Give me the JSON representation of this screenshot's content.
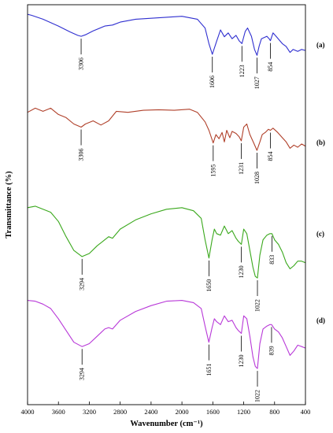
{
  "chart_data": {
    "type": "line",
    "xlabel": "Wavenumber (cm⁻¹)",
    "ylabel": "Transmittance (%)",
    "xlim": [
      4000,
      400
    ],
    "x_reversed": true,
    "xticks": [
      4000,
      3600,
      3200,
      2800,
      2400,
      2000,
      1600,
      1200,
      800,
      400
    ],
    "grid": false,
    "legend": "none",
    "series": [
      {
        "name": "(a)",
        "color": "#2f2fd0",
        "points": [
          [
            4000,
            0.9
          ],
          [
            3950,
            0.88
          ],
          [
            3800,
            0.8
          ],
          [
            3600,
            0.66
          ],
          [
            3450,
            0.54
          ],
          [
            3350,
            0.47
          ],
          [
            3306,
            0.45
          ],
          [
            3250,
            0.48
          ],
          [
            3150,
            0.56
          ],
          [
            3000,
            0.66
          ],
          [
            2900,
            0.68
          ],
          [
            2800,
            0.74
          ],
          [
            2600,
            0.8
          ],
          [
            2400,
            0.82
          ],
          [
            2200,
            0.84
          ],
          [
            2000,
            0.86
          ],
          [
            1800,
            0.8
          ],
          [
            1700,
            0.62
          ],
          [
            1650,
            0.3
          ],
          [
            1606,
            0.08
          ],
          [
            1550,
            0.35
          ],
          [
            1500,
            0.58
          ],
          [
            1450,
            0.44
          ],
          [
            1400,
            0.52
          ],
          [
            1350,
            0.4
          ],
          [
            1300,
            0.47
          ],
          [
            1260,
            0.36
          ],
          [
            1223,
            0.3
          ],
          [
            1180,
            0.55
          ],
          [
            1150,
            0.62
          ],
          [
            1100,
            0.45
          ],
          [
            1060,
            0.18
          ],
          [
            1027,
            0.06
          ],
          [
            1000,
            0.25
          ],
          [
            970,
            0.4
          ],
          [
            900,
            0.45
          ],
          [
            870,
            0.4
          ],
          [
            854,
            0.36
          ],
          [
            820,
            0.52
          ],
          [
            780,
            0.45
          ],
          [
            700,
            0.3
          ],
          [
            650,
            0.24
          ],
          [
            600,
            0.12
          ],
          [
            560,
            0.18
          ],
          [
            500,
            0.14
          ],
          [
            450,
            0.18
          ],
          [
            400,
            0.16
          ]
        ],
        "peaks": [
          3306,
          1606,
          1223,
          1027,
          854
        ]
      },
      {
        "name": "(b)",
        "color": "#b0402a",
        "points": [
          [
            4000,
            0.78
          ],
          [
            3900,
            0.86
          ],
          [
            3800,
            0.8
          ],
          [
            3700,
            0.86
          ],
          [
            3600,
            0.74
          ],
          [
            3500,
            0.68
          ],
          [
            3400,
            0.56
          ],
          [
            3306,
            0.5
          ],
          [
            3250,
            0.56
          ],
          [
            3150,
            0.62
          ],
          [
            3050,
            0.54
          ],
          [
            2950,
            0.62
          ],
          [
            2850,
            0.8
          ],
          [
            2700,
            0.78
          ],
          [
            2500,
            0.82
          ],
          [
            2300,
            0.83
          ],
          [
            2100,
            0.82
          ],
          [
            1900,
            0.84
          ],
          [
            1800,
            0.78
          ],
          [
            1700,
            0.6
          ],
          [
            1650,
            0.44
          ],
          [
            1595,
            0.2
          ],
          [
            1560,
            0.36
          ],
          [
            1520,
            0.28
          ],
          [
            1480,
            0.4
          ],
          [
            1450,
            0.22
          ],
          [
            1420,
            0.44
          ],
          [
            1380,
            0.3
          ],
          [
            1350,
            0.42
          ],
          [
            1300,
            0.38
          ],
          [
            1260,
            0.32
          ],
          [
            1231,
            0.24
          ],
          [
            1200,
            0.5
          ],
          [
            1160,
            0.56
          ],
          [
            1120,
            0.36
          ],
          [
            1070,
            0.2
          ],
          [
            1028,
            0.06
          ],
          [
            990,
            0.22
          ],
          [
            960,
            0.36
          ],
          [
            920,
            0.4
          ],
          [
            880,
            0.46
          ],
          [
            854,
            0.44
          ],
          [
            820,
            0.48
          ],
          [
            760,
            0.4
          ],
          [
            700,
            0.3
          ],
          [
            650,
            0.22
          ],
          [
            600,
            0.1
          ],
          [
            550,
            0.16
          ],
          [
            500,
            0.12
          ],
          [
            450,
            0.18
          ],
          [
            400,
            0.14
          ]
        ],
        "peaks": [
          3306,
          1595,
          1231,
          1028,
          854
        ]
      },
      {
        "name": "(c)",
        "color": "#3aa81c",
        "points": [
          [
            4000,
            0.94
          ],
          [
            3900,
            0.96
          ],
          [
            3800,
            0.92
          ],
          [
            3700,
            0.88
          ],
          [
            3600,
            0.76
          ],
          [
            3500,
            0.56
          ],
          [
            3400,
            0.38
          ],
          [
            3294,
            0.3
          ],
          [
            3200,
            0.34
          ],
          [
            3100,
            0.44
          ],
          [
            3000,
            0.52
          ],
          [
            2950,
            0.56
          ],
          [
            2900,
            0.54
          ],
          [
            2800,
            0.66
          ],
          [
            2600,
            0.78
          ],
          [
            2400,
            0.86
          ],
          [
            2200,
            0.92
          ],
          [
            2000,
            0.94
          ],
          [
            1850,
            0.9
          ],
          [
            1750,
            0.8
          ],
          [
            1700,
            0.52
          ],
          [
            1650,
            0.28
          ],
          [
            1610,
            0.52
          ],
          [
            1580,
            0.66
          ],
          [
            1550,
            0.6
          ],
          [
            1500,
            0.58
          ],
          [
            1450,
            0.7
          ],
          [
            1400,
            0.6
          ],
          [
            1350,
            0.64
          ],
          [
            1300,
            0.54
          ],
          [
            1270,
            0.5
          ],
          [
            1230,
            0.46
          ],
          [
            1200,
            0.66
          ],
          [
            1160,
            0.6
          ],
          [
            1120,
            0.38
          ],
          [
            1080,
            0.16
          ],
          [
            1050,
            0.04
          ],
          [
            1022,
            0.02
          ],
          [
            990,
            0.32
          ],
          [
            950,
            0.52
          ],
          [
            900,
            0.58
          ],
          [
            860,
            0.6
          ],
          [
            833,
            0.6
          ],
          [
            800,
            0.52
          ],
          [
            750,
            0.46
          ],
          [
            700,
            0.36
          ],
          [
            650,
            0.22
          ],
          [
            600,
            0.14
          ],
          [
            550,
            0.18
          ],
          [
            500,
            0.24
          ],
          [
            450,
            0.24
          ],
          [
            400,
            0.22
          ]
        ],
        "peaks": [
          3294,
          1650,
          1230,
          1022,
          833
        ]
      },
      {
        "name": "(d)",
        "color": "#b838d8",
        "points": [
          [
            4000,
            0.95
          ],
          [
            3900,
            0.94
          ],
          [
            3800,
            0.9
          ],
          [
            3700,
            0.84
          ],
          [
            3600,
            0.7
          ],
          [
            3500,
            0.54
          ],
          [
            3400,
            0.38
          ],
          [
            3294,
            0.32
          ],
          [
            3200,
            0.36
          ],
          [
            3100,
            0.46
          ],
          [
            3000,
            0.56
          ],
          [
            2950,
            0.58
          ],
          [
            2900,
            0.56
          ],
          [
            2800,
            0.68
          ],
          [
            2600,
            0.8
          ],
          [
            2400,
            0.88
          ],
          [
            2200,
            0.94
          ],
          [
            2000,
            0.95
          ],
          [
            1850,
            0.92
          ],
          [
            1750,
            0.84
          ],
          [
            1700,
            0.6
          ],
          [
            1651,
            0.38
          ],
          [
            1610,
            0.58
          ],
          [
            1580,
            0.7
          ],
          [
            1550,
            0.66
          ],
          [
            1500,
            0.62
          ],
          [
            1450,
            0.74
          ],
          [
            1400,
            0.66
          ],
          [
            1350,
            0.68
          ],
          [
            1300,
            0.58
          ],
          [
            1270,
            0.54
          ],
          [
            1230,
            0.5
          ],
          [
            1200,
            0.74
          ],
          [
            1160,
            0.7
          ],
          [
            1120,
            0.46
          ],
          [
            1080,
            0.18
          ],
          [
            1050,
            0.05
          ],
          [
            1022,
            0.02
          ],
          [
            990,
            0.36
          ],
          [
            950,
            0.56
          ],
          [
            900,
            0.6
          ],
          [
            860,
            0.62
          ],
          [
            839,
            0.62
          ],
          [
            800,
            0.56
          ],
          [
            750,
            0.52
          ],
          [
            700,
            0.44
          ],
          [
            650,
            0.32
          ],
          [
            600,
            0.2
          ],
          [
            550,
            0.26
          ],
          [
            500,
            0.34
          ],
          [
            450,
            0.32
          ],
          [
            400,
            0.3
          ]
        ],
        "peaks": [
          3294,
          1651,
          1230,
          1022,
          839
        ]
      }
    ]
  }
}
